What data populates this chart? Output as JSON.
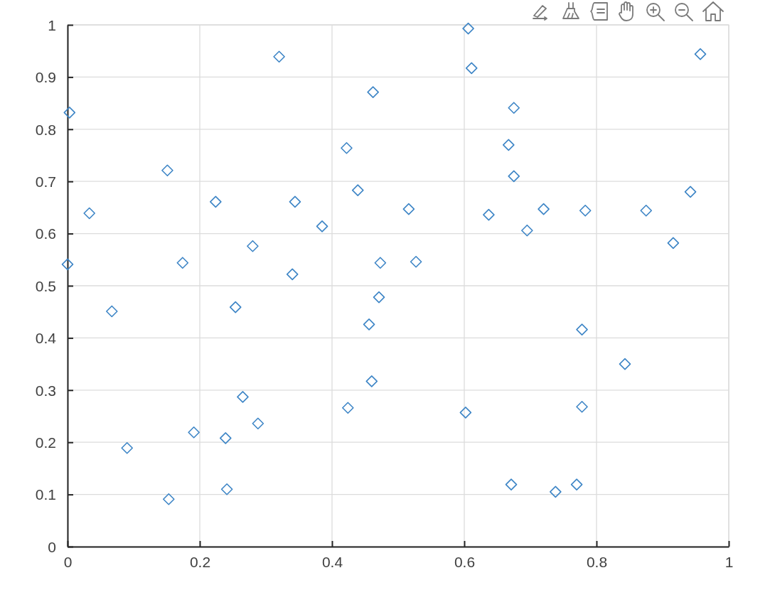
{
  "chart_data": {
    "type": "scatter",
    "x": [
      0.003,
      0.033,
      0.0,
      0.067,
      0.09,
      0.151,
      0.174,
      0.153,
      0.191,
      0.224,
      0.254,
      0.265,
      0.239,
      0.241,
      0.28,
      0.288,
      0.32,
      0.344,
      0.34,
      0.385,
      0.422,
      0.424,
      0.439,
      0.462,
      0.473,
      0.471,
      0.456,
      0.46,
      0.516,
      0.527,
      0.606,
      0.611,
      0.602,
      0.637,
      0.667,
      0.675,
      0.675,
      0.695,
      0.72,
      0.671,
      0.738,
      0.77,
      0.783,
      0.778,
      0.778,
      0.843,
      0.875,
      0.916,
      0.942,
      0.957
    ],
    "values": [
      0.832,
      0.639,
      0.541,
      0.451,
      0.189,
      0.721,
      0.544,
      0.091,
      0.219,
      0.661,
      0.459,
      0.287,
      0.208,
      0.11,
      0.576,
      0.236,
      0.939,
      0.661,
      0.522,
      0.614,
      0.764,
      0.266,
      0.683,
      0.871,
      0.544,
      0.478,
      0.426,
      0.317,
      0.647,
      0.546,
      0.993,
      0.917,
      0.257,
      0.636,
      0.77,
      0.841,
      0.71,
      0.606,
      0.647,
      0.119,
      0.105,
      0.119,
      0.644,
      0.416,
      0.268,
      0.35,
      0.644,
      0.582,
      0.68,
      0.944
    ],
    "color": "#3d85c6",
    "marker": "diamond",
    "grid": true,
    "xlim": [
      0,
      1
    ],
    "xticks": [
      0,
      0.2,
      0.4,
      0.6,
      0.8,
      1
    ],
    "ylim": [
      0,
      1
    ],
    "yticks": [
      0,
      0.1,
      0.2,
      0.3,
      0.4,
      0.5,
      0.6,
      0.7,
      0.8,
      0.9,
      1
    ]
  }
}
